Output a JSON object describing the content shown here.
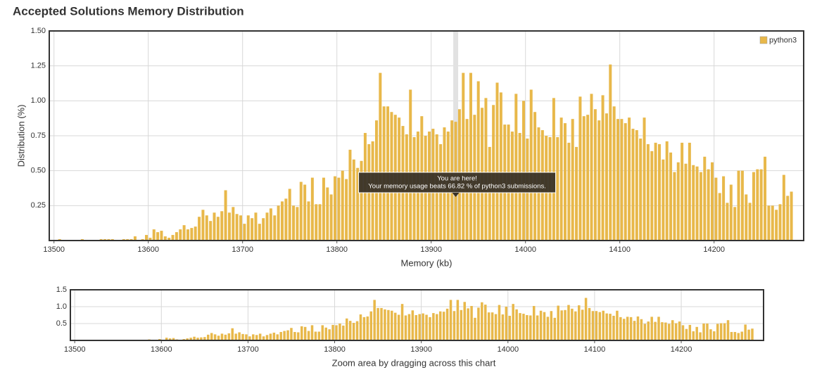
{
  "chart_data": {
    "type": "bar",
    "title": "Accepted Solutions Memory Distribution",
    "x_label": "Memory (kb)",
    "y_label": "Distribution (%)",
    "legend": "top-right",
    "grid": true,
    "xlim": [
      13495,
      14295
    ],
    "ylim": [
      0,
      1.5
    ],
    "xticks": [
      13500,
      13600,
      13700,
      13800,
      13900,
      14000,
      14100,
      14200
    ],
    "yticks": [
      {
        "value": 0.25,
        "label": "0.25"
      },
      {
        "value": 0.5,
        "label": "0.50"
      },
      {
        "value": 0.75,
        "label": "0.75"
      },
      {
        "value": 1.0,
        "label": "1.00"
      },
      {
        "value": 1.25,
        "label": "1.25"
      },
      {
        "value": 1.5,
        "label": "1.50"
      }
    ],
    "x": [
      13506,
      13510,
      13514,
      13518,
      13522,
      13526,
      13530,
      13534,
      13538,
      13542,
      13546,
      13550,
      13554,
      13558,
      13562,
      13566,
      13570,
      13574,
      13578,
      13582,
      13586,
      13590,
      13594,
      13598,
      13602,
      13606,
      13610,
      13614,
      13618,
      13622,
      13626,
      13630,
      13634,
      13638,
      13642,
      13646,
      13650,
      13654,
      13658,
      13662,
      13666,
      13670,
      13674,
      13678,
      13682,
      13686,
      13690,
      13694,
      13698,
      13702,
      13706,
      13710,
      13714,
      13718,
      13722,
      13726,
      13730,
      13734,
      13738,
      13742,
      13746,
      13750,
      13754,
      13758,
      13762,
      13766,
      13770,
      13774,
      13778,
      13782,
      13786,
      13790,
      13794,
      13798,
      13802,
      13806,
      13810,
      13814,
      13818,
      13822,
      13826,
      13830,
      13834,
      13838,
      13842,
      13846,
      13850,
      13854,
      13858,
      13862,
      13866,
      13870,
      13874,
      13878,
      13882,
      13886,
      13890,
      13894,
      13898,
      13902,
      13906,
      13910,
      13914,
      13918,
      13922,
      13926,
      13930,
      13934,
      13938,
      13942,
      13946,
      13950,
      13954,
      13958,
      13962,
      13966,
      13970,
      13974,
      13978,
      13982,
      13986,
      13990,
      13994,
      13998,
      14002,
      14006,
      14010,
      14014,
      14018,
      14022,
      14026,
      14030,
      14034,
      14038,
      14042,
      14046,
      14050,
      14054,
      14058,
      14062,
      14066,
      14070,
      14074,
      14078,
      14082,
      14086,
      14090,
      14094,
      14098,
      14102,
      14106,
      14110,
      14114,
      14118,
      14122,
      14126,
      14130,
      14134,
      14138,
      14142,
      14146,
      14150,
      14154,
      14158,
      14162,
      14166,
      14170,
      14174,
      14178,
      14182,
      14186,
      14190,
      14194,
      14198,
      14202,
      14206,
      14210,
      14214,
      14218,
      14222,
      14226,
      14230,
      14234,
      14238,
      14242,
      14246,
      14250,
      14254,
      14258,
      14262,
      14266,
      14270,
      14274,
      14278,
      14282
    ],
    "series": [
      {
        "name": "python3",
        "color": "#e8b84a",
        "values": [
          0.01,
          0,
          0,
          0,
          0,
          0,
          0.01,
          0,
          0,
          0,
          0,
          0.01,
          0.01,
          0.01,
          0.01,
          0,
          0,
          0.01,
          0.01,
          0.01,
          0.03,
          0,
          0.01,
          0.04,
          0.02,
          0.08,
          0.06,
          0.07,
          0.03,
          0.02,
          0.04,
          0.06,
          0.08,
          0.11,
          0.08,
          0.09,
          0.1,
          0.17,
          0.22,
          0.18,
          0.14,
          0.2,
          0.17,
          0.21,
          0.36,
          0.2,
          0.24,
          0.19,
          0.18,
          0.12,
          0.18,
          0.16,
          0.2,
          0.12,
          0.16,
          0.2,
          0.23,
          0.18,
          0.25,
          0.28,
          0.3,
          0.37,
          0.25,
          0.24,
          0.42,
          0.4,
          0.28,
          0.45,
          0.26,
          0.26,
          0.45,
          0.38,
          0.33,
          0.46,
          0.45,
          0.5,
          0.44,
          0.65,
          0.58,
          0.52,
          0.57,
          0.77,
          0.69,
          0.71,
          0.86,
          1.2,
          0.96,
          0.96,
          0.92,
          0.9,
          0.88,
          0.82,
          0.76,
          1.08,
          0.74,
          0.78,
          0.89,
          0.75,
          0.78,
          0.8,
          0.76,
          0.69,
          0.81,
          0.78,
          0.86,
          0.85,
          0.94,
          1.2,
          0.87,
          1.2,
          0.9,
          1.14,
          0.95,
          1.02,
          0.67,
          0.97,
          1.13,
          1.06,
          0.83,
          0.83,
          0.78,
          1.05,
          0.77,
          1.0,
          0.73,
          1.08,
          0.92,
          0.81,
          0.79,
          0.75,
          0.74,
          1.02,
          0.74,
          0.88,
          0.84,
          0.7,
          0.87,
          0.67,
          1.03,
          0.89,
          0.9,
          1.05,
          0.94,
          0.86,
          1.04,
          0.91,
          1.26,
          0.96,
          0.87,
          0.87,
          0.84,
          0.88,
          0.8,
          0.79,
          0.73,
          0.88,
          0.69,
          0.64,
          0.7,
          0.69,
          0.58,
          0.71,
          0.63,
          0.49,
          0.56,
          0.7,
          0.55,
          0.7,
          0.54,
          0.53,
          0.49,
          0.6,
          0.51,
          0.56,
          0.45,
          0.34,
          0.46,
          0.27,
          0.4,
          0.24,
          0.5,
          0.5,
          0.33,
          0.27,
          0.49,
          0.51,
          0.51,
          0.6,
          0.25,
          0.25,
          0.22,
          0.26,
          0.47,
          0.32,
          0.35
        ]
      }
    ],
    "highlight": {
      "x": 13926,
      "lines": [
        "You are here!",
        "Your memory usage beats 66.82 % of python3 submissions."
      ]
    },
    "navigator": {
      "caption": "Zoom area by dragging across this chart",
      "xlim": [
        13495,
        14295
      ],
      "ylim": [
        0,
        1.5
      ],
      "xticks": [
        13500,
        13600,
        13700,
        13800,
        13900,
        14000,
        14100,
        14200
      ],
      "yticks": [
        {
          "value": 0.5,
          "label": "0.5"
        },
        {
          "value": 1.0,
          "label": "1.0"
        },
        {
          "value": 1.5,
          "label": "1.5"
        }
      ]
    }
  }
}
